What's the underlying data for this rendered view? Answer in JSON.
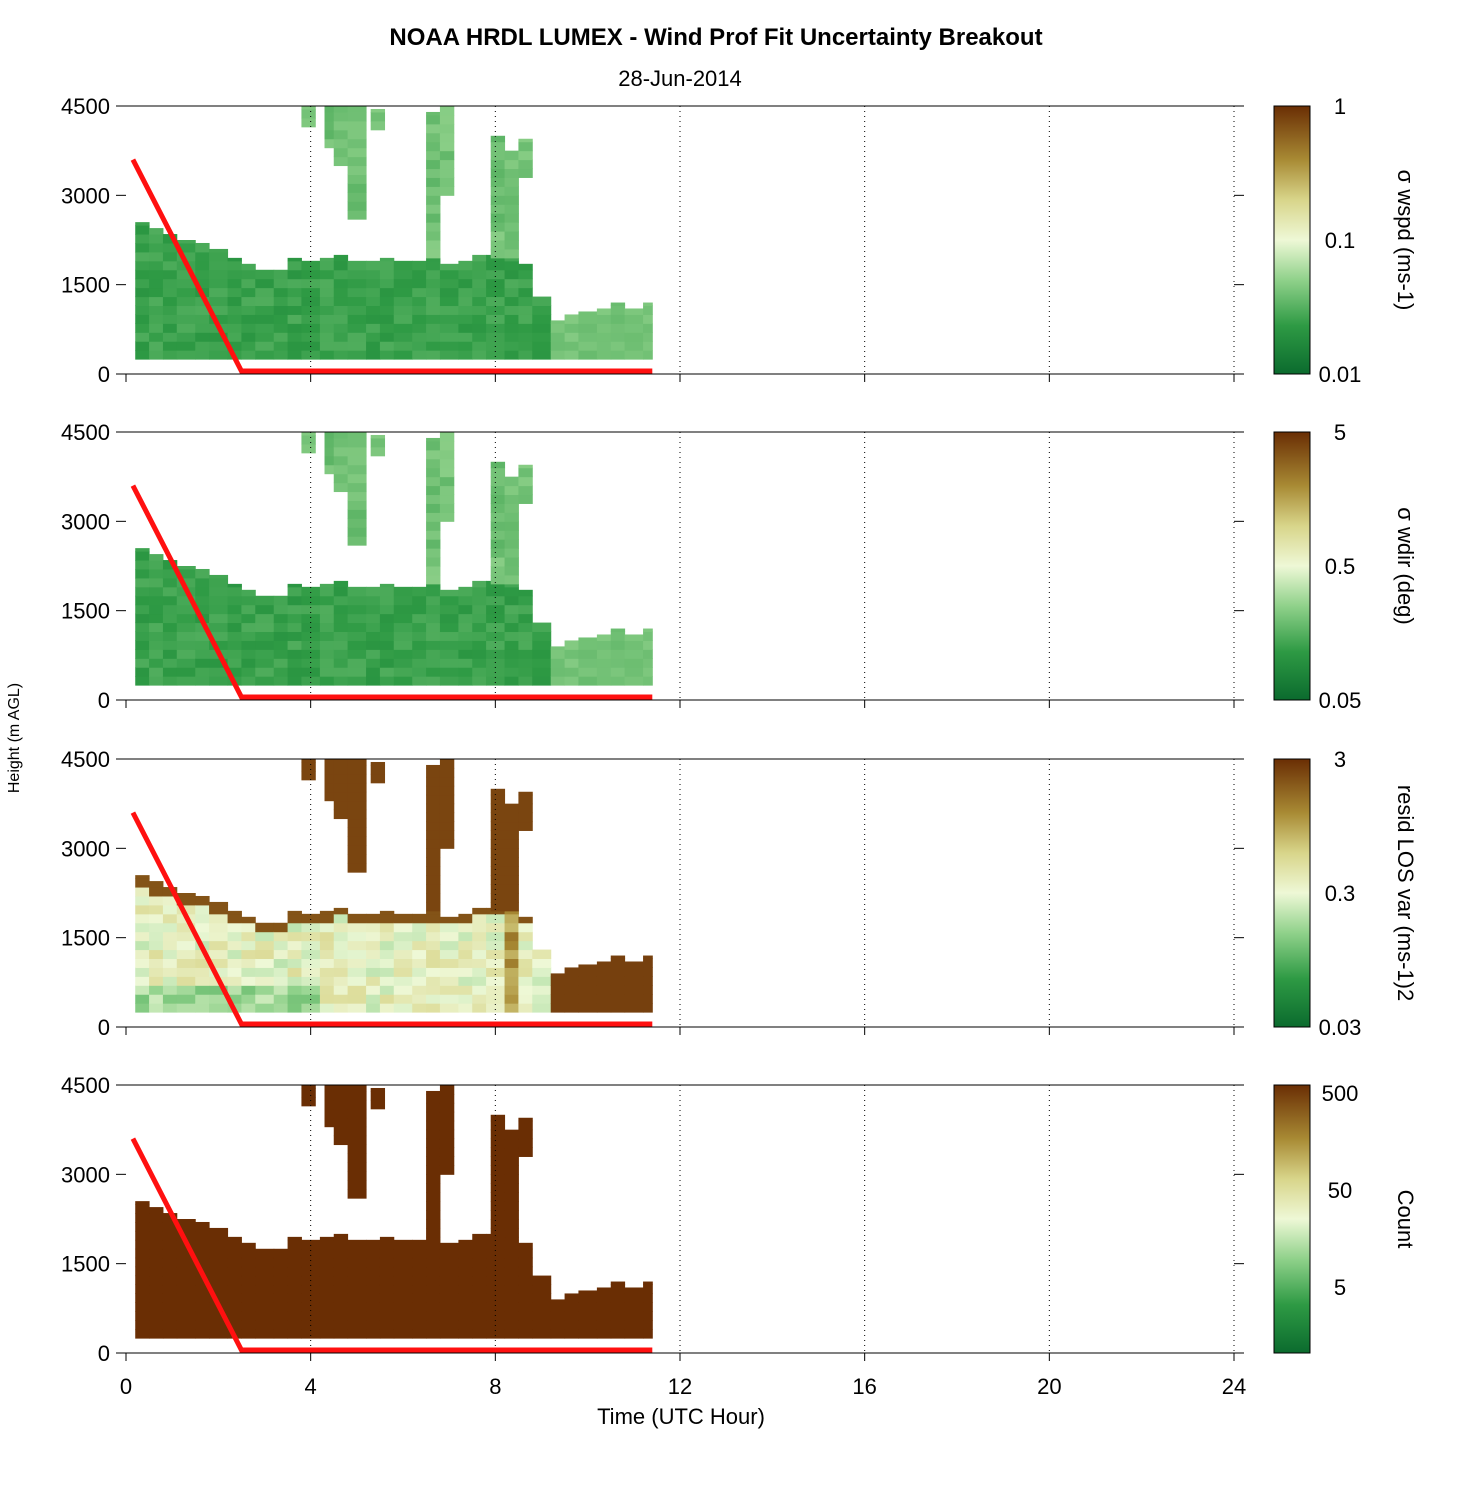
{
  "figure": {
    "title": "NOAA HRDL LUMEX - Wind Prof Fit Uncertainty Breakout",
    "date": "28-Jun-2014",
    "xlabel": "Time (UTC Hour)",
    "ylabel": "Height (m AGL)"
  },
  "colors": {
    "dark_green": "#0b6b2e",
    "light": "#f2f8dc",
    "dark_brown": "#6a2e04",
    "red_line": "#ff1010"
  },
  "chart_data": [
    {
      "type": "heatmap",
      "panel": "sigma-wspd",
      "colorbar_label": "σ wspd (ms-1)",
      "colorbar_ticks": [
        "1",
        "0.1",
        "0.01"
      ],
      "xlim": [
        0,
        24
      ],
      "ylim": [
        0,
        4500
      ],
      "x_ticks": [
        "0",
        "4",
        "8",
        "12",
        "16",
        "20",
        "24"
      ],
      "y_ticks": [
        "0",
        "1500",
        "3000",
        "4500"
      ],
      "typical_level": "low"
    },
    {
      "type": "heatmap",
      "panel": "sigma-wdir",
      "colorbar_label": "σ wdir (deg)",
      "colorbar_ticks": [
        "5",
        "0.5",
        "0.05"
      ],
      "xlim": [
        0,
        24
      ],
      "ylim": [
        0,
        4500
      ],
      "x_ticks": [
        "0",
        "4",
        "8",
        "12",
        "16",
        "20",
        "24"
      ],
      "y_ticks": [
        "0",
        "1500",
        "3000",
        "4500"
      ],
      "typical_level": "low"
    },
    {
      "type": "heatmap",
      "panel": "resid-los-var",
      "colorbar_label": "resid LOS var (ms-1)2",
      "colorbar_ticks": [
        "3",
        "0.3",
        "0.03"
      ],
      "xlim": [
        0,
        24
      ],
      "ylim": [
        0,
        4500
      ],
      "x_ticks": [
        "0",
        "4",
        "8",
        "12",
        "16",
        "20",
        "24"
      ],
      "y_ticks": [
        "0",
        "1500",
        "3000",
        "4500"
      ],
      "typical_level": "mid-high"
    },
    {
      "type": "heatmap",
      "panel": "count",
      "colorbar_label": "Count",
      "colorbar_ticks": [
        "500",
        "50",
        "5"
      ],
      "xlim": [
        0,
        24
      ],
      "ylim": [
        0,
        4500
      ],
      "x_ticks": [
        "0",
        "4",
        "8",
        "12",
        "16",
        "20",
        "24"
      ],
      "y_ticks": [
        "0",
        "1500",
        "3000",
        "4500"
      ],
      "typical_level": "max"
    }
  ],
  "shared_series": {
    "data_columns": [
      {
        "t0": 0.2,
        "t1": 0.5,
        "top": 2550
      },
      {
        "t0": 0.5,
        "t1": 0.8,
        "top": 2450
      },
      {
        "t0": 0.8,
        "t1": 1.1,
        "top": 2350
      },
      {
        "t0": 1.1,
        "t1": 1.5,
        "top": 2250
      },
      {
        "t0": 1.5,
        "t1": 1.8,
        "top": 2200
      },
      {
        "t0": 1.8,
        "t1": 2.2,
        "top": 2100
      },
      {
        "t0": 2.2,
        "t1": 2.5,
        "top": 1950
      },
      {
        "t0": 2.5,
        "t1": 2.8,
        "top": 1850
      },
      {
        "t0": 2.8,
        "t1": 3.2,
        "top": 1750
      },
      {
        "t0": 3.2,
        "t1": 3.5,
        "top": 1750
      },
      {
        "t0": 3.5,
        "t1": 3.8,
        "top": 1950
      },
      {
        "t0": 3.8,
        "t1": 4.2,
        "top": 1900
      },
      {
        "t0": 4.2,
        "t1": 4.5,
        "top": 1950
      },
      {
        "t0": 4.5,
        "t1": 4.8,
        "top": 2000
      },
      {
        "t0": 4.8,
        "t1": 5.2,
        "top": 1900
      },
      {
        "t0": 5.2,
        "t1": 5.5,
        "top": 1900
      },
      {
        "t0": 5.5,
        "t1": 5.8,
        "top": 1950
      },
      {
        "t0": 5.8,
        "t1": 6.2,
        "top": 1900
      },
      {
        "t0": 6.2,
        "t1": 6.5,
        "top": 1900
      },
      {
        "t0": 6.5,
        "t1": 6.8,
        "top": 1950
      },
      {
        "t0": 6.8,
        "t1": 7.2,
        "top": 1850
      },
      {
        "t0": 7.2,
        "t1": 7.5,
        "top": 1900
      },
      {
        "t0": 7.5,
        "t1": 7.8,
        "top": 2000
      },
      {
        "t0": 7.8,
        "t1": 8.2,
        "top": 2000
      },
      {
        "t0": 8.2,
        "t1": 8.5,
        "top": 1950
      },
      {
        "t0": 8.5,
        "t1": 8.8,
        "top": 1850
      },
      {
        "t0": 8.8,
        "t1": 9.2,
        "top": 1300
      },
      {
        "t0": 9.2,
        "t1": 9.5,
        "top": 900
      },
      {
        "t0": 9.5,
        "t1": 9.8,
        "top": 1000
      },
      {
        "t0": 9.8,
        "t1": 10.2,
        "top": 1050
      },
      {
        "t0": 10.2,
        "t1": 10.5,
        "top": 1100
      },
      {
        "t0": 10.5,
        "t1": 10.8,
        "top": 1200
      },
      {
        "t0": 10.8,
        "t1": 11.2,
        "top": 1100
      },
      {
        "t0": 11.2,
        "t1": 11.4,
        "top": 1200
      }
    ],
    "data_bottom": 250,
    "upper_blocks": [
      {
        "t0": 3.8,
        "t1": 4.1,
        "bottom": 4150,
        "top": 4500
      },
      {
        "t0": 4.3,
        "t1": 4.5,
        "bottom": 3800,
        "top": 4500
      },
      {
        "t0": 4.5,
        "t1": 4.8,
        "bottom": 3500,
        "top": 4500
      },
      {
        "t0": 4.8,
        "t1": 5.2,
        "bottom": 2600,
        "top": 4500
      },
      {
        "t0": 5.3,
        "t1": 5.6,
        "bottom": 4100,
        "top": 4450
      },
      {
        "t0": 6.5,
        "t1": 6.8,
        "bottom": 1950,
        "top": 4400
      },
      {
        "t0": 6.8,
        "t1": 7.1,
        "bottom": 3000,
        "top": 4500
      },
      {
        "t0": 7.9,
        "t1": 8.2,
        "bottom": 1950,
        "top": 4000
      },
      {
        "t0": 8.2,
        "t1": 8.5,
        "bottom": 1950,
        "top": 3750
      },
      {
        "t0": 8.5,
        "t1": 8.8,
        "bottom": 3300,
        "top": 3950
      }
    ],
    "red_line": {
      "x": [
        0.15,
        2.5,
        11.4
      ],
      "y": [
        3600,
        50,
        50
      ]
    }
  }
}
